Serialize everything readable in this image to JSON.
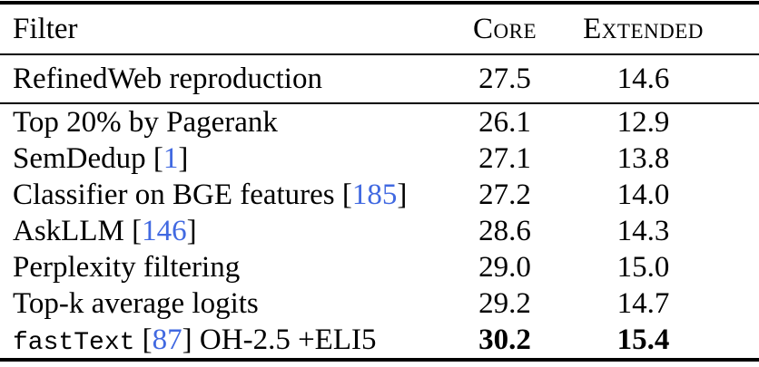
{
  "colors": {
    "background": "#ffffff",
    "text": "#000000",
    "citation": "#4169E1"
  },
  "table": {
    "header": {
      "filter": "Filter",
      "core": "Core",
      "extended": "Extended"
    },
    "baseline": {
      "label": "RefinedWeb reproduction",
      "core": "27.5",
      "extended": "14.6"
    },
    "rows": [
      {
        "parts": [
          {
            "t": "Top 20% by Pagerank",
            "s": "serif"
          }
        ],
        "core": "26.1",
        "extended": "12.9",
        "bold": false
      },
      {
        "parts": [
          {
            "t": "SemDedup [",
            "s": "serif"
          },
          {
            "t": "1",
            "s": "cite"
          },
          {
            "t": "]",
            "s": "serif"
          }
        ],
        "core": "27.1",
        "extended": "13.8",
        "bold": false
      },
      {
        "parts": [
          {
            "t": "Classifier on BGE features [",
            "s": "serif"
          },
          {
            "t": "185",
            "s": "cite"
          },
          {
            "t": "]",
            "s": "serif"
          }
        ],
        "core": "27.2",
        "extended": "14.0",
        "bold": false
      },
      {
        "parts": [
          {
            "t": "AskLLM [",
            "s": "serif"
          },
          {
            "t": "146",
            "s": "cite"
          },
          {
            "t": "]",
            "s": "serif"
          }
        ],
        "core": "28.6",
        "extended": "14.3",
        "bold": false
      },
      {
        "parts": [
          {
            "t": "Perplexity filtering",
            "s": "serif"
          }
        ],
        "core": "29.0",
        "extended": "15.0",
        "bold": false
      },
      {
        "parts": [
          {
            "t": "Top-k average logits",
            "s": "serif"
          }
        ],
        "core": "29.2",
        "extended": "14.7",
        "bold": false
      },
      {
        "parts": [
          {
            "t": "fastText",
            "s": "mono"
          },
          {
            "t": " [",
            "s": "serif"
          },
          {
            "t": "87",
            "s": "cite"
          },
          {
            "t": "] OH-2.5 +ELI5",
            "s": "serif"
          }
        ],
        "core": "30.2",
        "extended": "15.4",
        "bold": true
      }
    ]
  }
}
